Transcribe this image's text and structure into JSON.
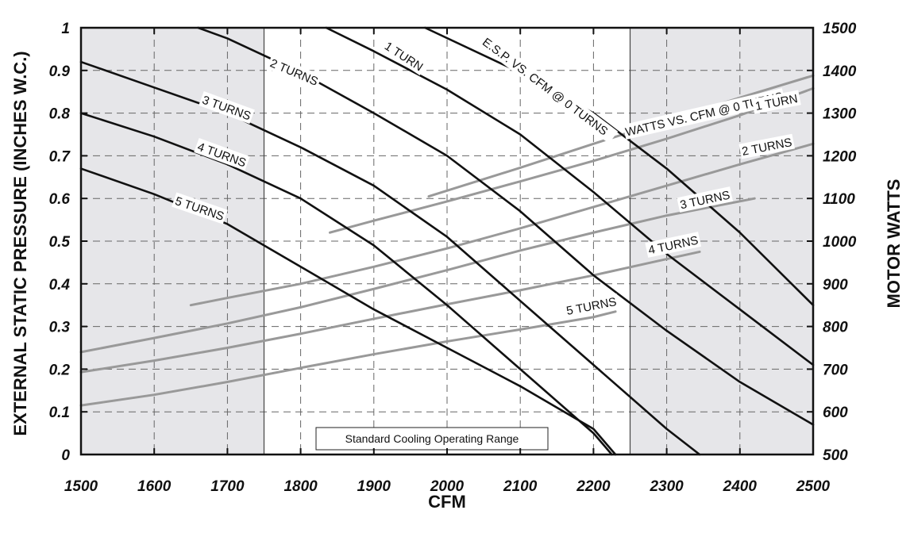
{
  "chart_data": {
    "type": "line",
    "xlabel": "CFM",
    "ylabel": "EXTERNAL STATIC PRESSURE (INCHES W.C.)",
    "y2label": "MOTOR WATTS",
    "xlim": [
      1500,
      2500
    ],
    "ylim": [
      0,
      1
    ],
    "y2lim": [
      500,
      1500
    ],
    "x_ticks": [
      1500,
      1600,
      1700,
      1800,
      1900,
      2000,
      2100,
      2200,
      2300,
      2400,
      2500
    ],
    "y_ticks": [
      0,
      0.1,
      0.2,
      0.3,
      0.4,
      0.5,
      0.6,
      0.7,
      0.8,
      0.9,
      1
    ],
    "y_tick_labels": [
      "0",
      "0.1",
      "0.2",
      "0.3",
      "0.4",
      "0.5",
      "0.6",
      "0.7",
      "0.8",
      "0.9",
      "1"
    ],
    "y2_ticks": [
      500,
      600,
      700,
      800,
      900,
      1000,
      1100,
      1200,
      1300,
      1400,
      1500
    ],
    "grid": true,
    "shaded_regions": [
      [
        1500,
        1750
      ],
      [
        2250,
        2500
      ]
    ],
    "region_label": "Standard Cooling Operating Range",
    "pressure_series": [
      {
        "name": "E.S.P. VS. CFM @ 0 TURNS",
        "axis": "left",
        "color": "#111111",
        "x": [
          1970,
          2100,
          2200,
          2300,
          2400,
          2500
        ],
        "y": [
          1.0,
          0.895,
          0.8,
          0.67,
          0.52,
          0.35
        ]
      },
      {
        "name": "1 TURN",
        "axis": "left",
        "color": "#111111",
        "x": [
          1835,
          1900,
          2000,
          2100,
          2200,
          2300,
          2400,
          2500
        ],
        "y": [
          1.0,
          0.945,
          0.855,
          0.75,
          0.615,
          0.47,
          0.34,
          0.21
        ]
      },
      {
        "name": "2 TURNS",
        "axis": "left",
        "color": "#111111",
        "x": [
          1660,
          1700,
          1800,
          1900,
          2000,
          2100,
          2200,
          2300,
          2400,
          2500
        ],
        "y": [
          1.0,
          0.975,
          0.895,
          0.8,
          0.7,
          0.57,
          0.42,
          0.29,
          0.17,
          0.07
        ]
      },
      {
        "name": "3 TURNS",
        "axis": "left",
        "color": "#111111",
        "x": [
          1500,
          1600,
          1700,
          1800,
          1900,
          2000,
          2100,
          2200,
          2300,
          2345
        ],
        "y": [
          0.92,
          0.86,
          0.8,
          0.72,
          0.63,
          0.51,
          0.36,
          0.21,
          0.06,
          0.0
        ]
      },
      {
        "name": "4 TURNS",
        "axis": "left",
        "color": "#111111",
        "x": [
          1500,
          1600,
          1700,
          1800,
          1900,
          2000,
          2100,
          2200,
          2225
        ],
        "y": [
          0.8,
          0.745,
          0.68,
          0.6,
          0.49,
          0.35,
          0.2,
          0.05,
          0.0
        ]
      },
      {
        "name": "5 TURNS",
        "axis": "left",
        "color": "#111111",
        "x": [
          1500,
          1600,
          1700,
          1800,
          1900,
          2000,
          2100,
          2200,
          2230
        ],
        "y": [
          0.67,
          0.61,
          0.54,
          0.44,
          0.34,
          0.25,
          0.16,
          0.06,
          0.0
        ]
      }
    ],
    "watts_series": [
      {
        "name": "WATTS VS. CFM @ 0 TURNS",
        "axis": "right",
        "color": "#999999",
        "x": [
          1975,
          2100,
          2200,
          2300,
          2400,
          2500
        ],
        "y": [
          1105,
          1172,
          1228,
          1283,
          1336,
          1388
        ]
      },
      {
        "name": "1 TURN",
        "axis": "right",
        "color": "#999999",
        "x": [
          1840,
          1900,
          2000,
          2100,
          2200,
          2300,
          2400,
          2500
        ],
        "y": [
          1020,
          1048,
          1093,
          1140,
          1188,
          1240,
          1295,
          1358
        ]
      },
      {
        "name": "2 TURNS",
        "axis": "right",
        "color": "#999999",
        "x": [
          1650,
          1700,
          1800,
          1900,
          2000,
          2100,
          2200,
          2300,
          2400,
          2500
        ],
        "y": [
          850,
          867,
          900,
          940,
          983,
          1030,
          1080,
          1130,
          1180,
          1228
        ]
      },
      {
        "name": "3 TURNS",
        "axis": "right",
        "color": "#999999",
        "x": [
          1500,
          1600,
          1700,
          1800,
          1900,
          2000,
          2100,
          2200,
          2300,
          2420
        ],
        "y": [
          740,
          773,
          807,
          845,
          888,
          932,
          978,
          1020,
          1060,
          1100
        ]
      },
      {
        "name": "4 TURNS",
        "axis": "right",
        "color": "#999999",
        "x": [
          1500,
          1600,
          1700,
          1800,
          1900,
          2000,
          2100,
          2200,
          2300,
          2345
        ],
        "y": [
          693,
          720,
          750,
          783,
          818,
          852,
          885,
          920,
          958,
          975
        ]
      },
      {
        "name": "5 TURNS",
        "axis": "right",
        "color": "#999999",
        "x": [
          1500,
          1600,
          1700,
          1800,
          1900,
          2000,
          2100,
          2200,
          2230
        ],
        "y": [
          615,
          640,
          670,
          703,
          735,
          765,
          793,
          822,
          835
        ]
      }
    ],
    "curve_labels": [
      {
        "text": "E.S.P. VS. CFM @ 0 TURNS"
      },
      {
        "text": "1 TURN"
      },
      {
        "text": "2 TURNS"
      },
      {
        "text": "3 TURNS"
      },
      {
        "text": "4 TURNS"
      },
      {
        "text": "5 TURNS"
      },
      {
        "text": "WATTS VS. CFM @ 0 TURNS"
      },
      {
        "text": "1 TURN"
      },
      {
        "text": "2 TURNS"
      },
      {
        "text": "3 TURNS"
      },
      {
        "text": "4 TURNS"
      },
      {
        "text": "5 TURNS"
      }
    ]
  }
}
